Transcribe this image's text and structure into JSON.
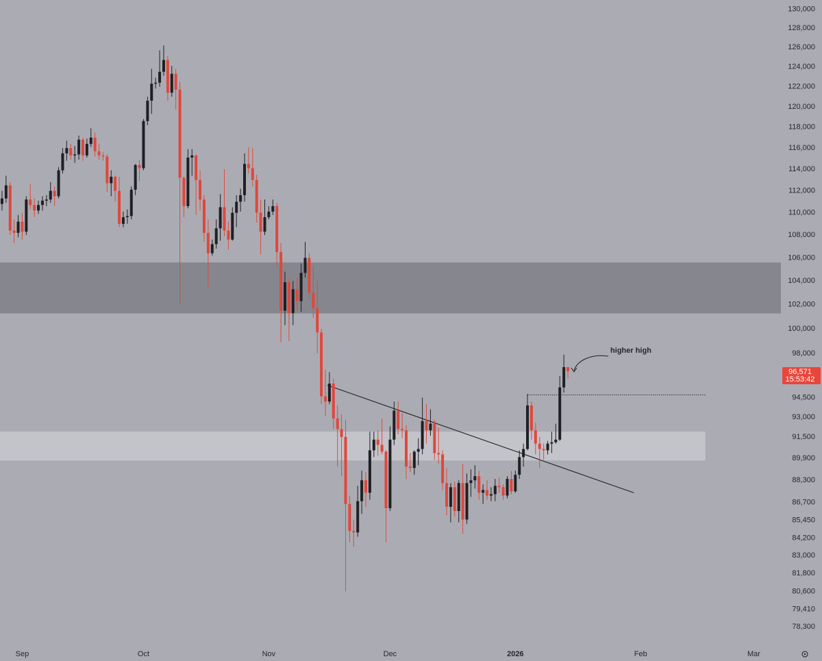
{
  "chart_data": {
    "type": "candlestick",
    "log_scale": true,
    "up_color": "#1f1f24",
    "down_color": "#e0473c",
    "ylim": [
      77200,
      131000
    ],
    "xlim": [
      -0.5,
      192.7
    ],
    "yticks": [
      {
        "value": 130000,
        "label": "130,000"
      },
      {
        "value": 128000,
        "label": "128,000"
      },
      {
        "value": 126000,
        "label": "126,000"
      },
      {
        "value": 124000,
        "label": "124,000"
      },
      {
        "value": 122000,
        "label": "122,000"
      },
      {
        "value": 120000,
        "label": "120,000"
      },
      {
        "value": 118000,
        "label": "118,000"
      },
      {
        "value": 116000,
        "label": "116,000"
      },
      {
        "value": 114000,
        "label": "114,000"
      },
      {
        "value": 112000,
        "label": "112,000"
      },
      {
        "value": 110000,
        "label": "110,000"
      },
      {
        "value": 108000,
        "label": "108,000"
      },
      {
        "value": 106000,
        "label": "106,000"
      },
      {
        "value": 104000,
        "label": "104,000"
      },
      {
        "value": 102000,
        "label": "102,000"
      },
      {
        "value": 100000,
        "label": "100,000"
      },
      {
        "value": 98000,
        "label": "98,000"
      },
      {
        "value": 94500,
        "label": "94,500"
      },
      {
        "value": 93000,
        "label": "93,000"
      },
      {
        "value": 91500,
        "label": "91,500"
      },
      {
        "value": 89900,
        "label": "89,900"
      },
      {
        "value": 88300,
        "label": "88,300"
      },
      {
        "value": 86700,
        "label": "86,700"
      },
      {
        "value": 85450,
        "label": "85,450"
      },
      {
        "value": 84200,
        "label": "84,200"
      },
      {
        "value": 83000,
        "label": "83,000"
      },
      {
        "value": 81800,
        "label": "81,800"
      },
      {
        "value": 80600,
        "label": "80,600"
      },
      {
        "value": 79410,
        "label": "79,410"
      },
      {
        "value": 78300,
        "label": "78,300"
      }
    ],
    "xticks": [
      {
        "value": 5,
        "label": "Sep"
      },
      {
        "value": 35,
        "label": "Oct"
      },
      {
        "value": 66,
        "label": "Nov"
      },
      {
        "value": 96,
        "label": "Dec"
      },
      {
        "value": 127,
        "label": "2026"
      },
      {
        "value": 158,
        "label": "Feb"
      },
      {
        "value": 186,
        "label": "Mar"
      }
    ],
    "open": [
      110800,
      111300,
      112500,
      108400,
      108200,
      109200,
      108300,
      111200,
      110700,
      110200,
      110700,
      111100,
      111200,
      112000,
      111500,
      113900,
      115500,
      116000,
      115300,
      115400,
      116800,
      115300,
      116400,
      117000,
      115700,
      115300,
      115200,
      112700,
      113300,
      112000,
      109000,
      109600,
      109700,
      112100,
      114400,
      114100,
      118600,
      120600,
      122300,
      122400,
      123500,
      124700,
      121400,
      123300,
      121700,
      113200,
      110600,
      115100,
      115300,
      113000,
      111200,
      108200,
      106400,
      107200,
      108600,
      110500,
      108400,
      107600,
      110000,
      111000,
      111600,
      114500,
      114100,
      113000,
      110000,
      108300,
      109600,
      110100,
      110600,
      106500,
      101500,
      103900,
      101300,
      103300,
      102300,
      104700,
      106000,
      103000,
      101700,
      99700,
      94600,
      94200,
      95600,
      92900,
      92100,
      91500,
      86600,
      84700,
      84600,
      86800,
      88300,
      87400,
      90500,
      91300,
      90900,
      90400,
      86300,
      91300,
      93500,
      92100,
      92000,
      89300,
      89200,
      90400,
      90600,
      92700,
      92000,
      92500,
      90300,
      90200,
      88100,
      86400,
      87800,
      86100,
      88100,
      85500,
      88100,
      88300,
      88600,
      87400,
      87600,
      87200,
      87300,
      87900,
      87800,
      87200,
      88400,
      87500,
      88700,
      90000,
      90600,
      93900,
      92000,
      91000,
      90600,
      90500,
      91000,
      91100,
      91300,
      95300,
      96900
    ],
    "high": [
      112000,
      113400,
      112800,
      109400,
      109800,
      110000,
      111500,
      112600,
      111300,
      111100,
      111500,
      111600,
      112800,
      112400,
      114200,
      116000,
      116700,
      116400,
      116200,
      117200,
      117000,
      116900,
      117900,
      117500,
      116400,
      115600,
      115400,
      113900,
      113400,
      113300,
      110100,
      110300,
      112400,
      114500,
      114900,
      118800,
      121000,
      123800,
      122900,
      125700,
      126200,
      125100,
      124100,
      123800,
      122500,
      113300,
      115900,
      115900,
      115400,
      113900,
      111600,
      109400,
      107600,
      109400,
      111700,
      114000,
      109200,
      110500,
      111600,
      112200,
      115500,
      116100,
      116000,
      113500,
      111200,
      111200,
      110600,
      111200,
      110900,
      107300,
      104800,
      104200,
      104000,
      104300,
      105500,
      107400,
      106400,
      105300,
      104000,
      100000,
      96700,
      96500,
      96000,
      93900,
      93200,
      92800,
      87200,
      85500,
      87900,
      89000,
      88900,
      91900,
      91900,
      92000,
      92900,
      90500,
      92300,
      94200,
      94200,
      93300,
      92400,
      90300,
      90500,
      91400,
      94500,
      94000,
      93600,
      92800,
      92200,
      90500,
      89200,
      88100,
      88200,
      88300,
      89500,
      88800,
      89100,
      89400,
      89000,
      88000,
      88300,
      87800,
      88400,
      88500,
      88000,
      88600,
      89000,
      89000,
      90500,
      91000,
      94800,
      94200,
      92600,
      91500,
      91000,
      91200,
      91900,
      92500,
      96200,
      97900,
      96900
    ],
    "low": [
      110200,
      110900,
      108000,
      107300,
      107800,
      107600,
      108000,
      110300,
      109600,
      109900,
      110200,
      110600,
      110900,
      110600,
      111300,
      113600,
      114800,
      114900,
      114600,
      114900,
      114800,
      115100,
      116100,
      115200,
      114900,
      114800,
      111900,
      111500,
      111000,
      108700,
      108700,
      109000,
      109400,
      111600,
      112900,
      113900,
      118200,
      119300,
      121800,
      122000,
      123100,
      120600,
      121000,
      119700,
      102000,
      109600,
      110400,
      113400,
      109800,
      110200,
      107400,
      103500,
      106200,
      106800,
      107500,
      107900,
      106700,
      107500,
      108700,
      110100,
      111000,
      113600,
      112400,
      109100,
      106300,
      108000,
      109400,
      109800,
      105300,
      98900,
      100300,
      99000,
      100300,
      101500,
      101400,
      104300,
      102500,
      100900,
      98000,
      94000,
      93100,
      94000,
      92100,
      89300,
      88600,
      80600,
      83900,
      83600,
      84300,
      85900,
      86400,
      86900,
      90000,
      90100,
      90200,
      83900,
      86100,
      90900,
      91700,
      91400,
      88400,
      88900,
      88700,
      89400,
      90200,
      91000,
      91600,
      89800,
      89500,
      87600,
      85800,
      85300,
      85700,
      85300,
      84500,
      85200,
      87100,
      87700,
      86900,
      86600,
      86900,
      86800,
      86800,
      87400,
      86900,
      87000,
      87300,
      87400,
      88400,
      89300,
      90500,
      91300,
      90200,
      89200,
      89800,
      90200,
      90300,
      91000,
      91200,
      94900,
      96000
    ],
    "close": [
      111300,
      112500,
      108400,
      108200,
      109200,
      108300,
      111200,
      110700,
      110200,
      110700,
      111100,
      111200,
      112000,
      111500,
      113900,
      115500,
      116000,
      115300,
      115400,
      116800,
      115300,
      116400,
      117000,
      115700,
      115300,
      115200,
      112700,
      113300,
      112000,
      109000,
      109600,
      109700,
      112100,
      114400,
      114100,
      118600,
      120600,
      122300,
      122400,
      123500,
      124700,
      121400,
      123300,
      121700,
      113200,
      110600,
      115100,
      115300,
      113000,
      111200,
      108200,
      106400,
      107200,
      108600,
      110500,
      108400,
      107600,
      110000,
      111000,
      111600,
      114500,
      114100,
      113000,
      110000,
      108300,
      109600,
      110100,
      110600,
      106500,
      101500,
      103900,
      101300,
      103300,
      102300,
      104700,
      106000,
      103000,
      101700,
      99700,
      94600,
      94200,
      95600,
      92900,
      92100,
      91500,
      86600,
      84700,
      84600,
      86800,
      88300,
      87400,
      90500,
      91300,
      90900,
      90400,
      86300,
      91300,
      93500,
      92100,
      92000,
      89300,
      89200,
      90400,
      90600,
      92700,
      92000,
      92500,
      90300,
      90200,
      88100,
      86400,
      87800,
      86100,
      88100,
      85500,
      88100,
      88300,
      88600,
      87400,
      87600,
      87200,
      87300,
      87900,
      87800,
      87200,
      88400,
      87500,
      88700,
      90000,
      90600,
      93900,
      92000,
      91000,
      90600,
      90500,
      91000,
      91100,
      91300,
      95300,
      96900,
      96571
    ],
    "last_price_label": "96,571",
    "countdown": "15:53:42",
    "price_label_color": "#e8463c",
    "zones": [
      {
        "low": 101270,
        "high": 105600,
        "color": "#86878e"
      },
      {
        "low": 89750,
        "high": 91900,
        "color": "#c3c4ca",
        "end": 174
      }
    ],
    "trendline": {
      "x": [
        80.5,
        156.3
      ],
      "y": [
        95470,
        87400
      ]
    },
    "level_line": {
      "x": [
        130,
        174
      ],
      "y": [
        94720,
        94720
      ]
    },
    "annotation": "higher high"
  }
}
